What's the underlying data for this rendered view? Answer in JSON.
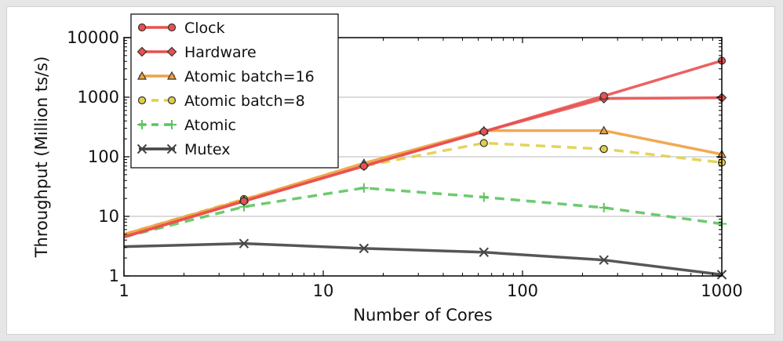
{
  "chart_data": {
    "type": "line",
    "xlabel": "Number of Cores",
    "ylabel": "Throughput (Million ts/s)",
    "xscale": "log",
    "yscale": "log",
    "xlim": [
      1,
      1000
    ],
    "ylim": [
      1,
      10000
    ],
    "x_ticks": [
      "1",
      "10",
      "100",
      "1000"
    ],
    "y_ticks": [
      "1",
      "10",
      "100",
      "1000",
      "10000"
    ],
    "grid": "horizontal",
    "legend_position": "top-left",
    "x": [
      1,
      4,
      16,
      64,
      256,
      1024
    ],
    "series": [
      {
        "name": "Clock",
        "values": [
          4.5,
          18,
          70,
          265,
          1050,
          4100
        ],
        "color": "#e8514f",
        "style": "solid",
        "marker": "circle"
      },
      {
        "name": "Hardware",
        "values": [
          4.5,
          18,
          70,
          265,
          950,
          980
        ],
        "color": "#e8514f",
        "style": "solid",
        "marker": "diamond"
      },
      {
        "name": "Atomic batch=16",
        "values": [
          5,
          19,
          78,
          275,
          275,
          110
        ],
        "color": "#f0a040",
        "style": "solid",
        "marker": "triangle"
      },
      {
        "name": "Atomic batch=8",
        "values": [
          5,
          19.5,
          70,
          170,
          135,
          80
        ],
        "color": "#e0cf4a",
        "style": "dashed",
        "marker": "circle-yellow"
      },
      {
        "name": "Atomic",
        "values": [
          4.5,
          14.5,
          30,
          21,
          14,
          7.5
        ],
        "color": "#5ec45e",
        "style": "dashed",
        "marker": "plus"
      },
      {
        "name": "Mutex",
        "values": [
          3.1,
          3.5,
          2.9,
          2.5,
          1.85,
          1.05
        ],
        "color": "#444444",
        "style": "solid",
        "marker": "x"
      }
    ]
  }
}
